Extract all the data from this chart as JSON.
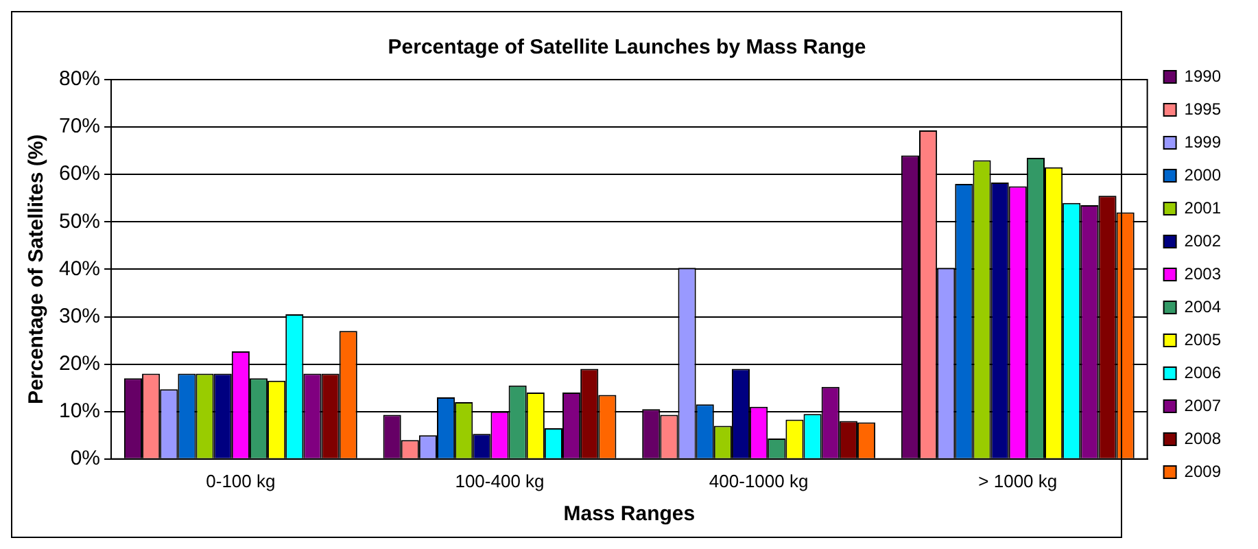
{
  "chart_data": {
    "type": "bar",
    "title": "Percentage of Satellite Launches by Mass Range",
    "xlabel": "Mass Ranges",
    "ylabel": "Percentage of Satellites (%)",
    "categories": [
      "0-100 kg",
      "100-400 kg",
      "400-1000 kg",
      "> 1000 kg"
    ],
    "series": [
      {
        "name": "1990",
        "color": "#660066",
        "values": [
          17,
          9.3,
          10.5,
          64
        ]
      },
      {
        "name": "1995",
        "color": "#ff8080",
        "values": [
          18,
          4,
          9.3,
          69.3
        ]
      },
      {
        "name": "1999",
        "color": "#9999ff",
        "values": [
          14.7,
          5,
          40.3,
          40.3
        ]
      },
      {
        "name": "2000",
        "color": "#0066cc",
        "values": [
          18,
          13,
          11.5,
          58
        ]
      },
      {
        "name": "2001",
        "color": "#99cc00",
        "values": [
          18,
          12,
          7,
          63
        ]
      },
      {
        "name": "2002",
        "color": "#000080",
        "values": [
          18,
          5.3,
          19,
          58.3
        ]
      },
      {
        "name": "2003",
        "color": "#ff00ff",
        "values": [
          22.7,
          10,
          11,
          57.5
        ]
      },
      {
        "name": "2004",
        "color": "#339966",
        "values": [
          17,
          15.5,
          4.3,
          63.5
        ]
      },
      {
        "name": "2005",
        "color": "#ffff00",
        "values": [
          16.5,
          14,
          8.3,
          61.5
        ]
      },
      {
        "name": "2006",
        "color": "#00ffff",
        "values": [
          30.5,
          6.5,
          9.5,
          54
        ]
      },
      {
        "name": "2007",
        "color": "#800080",
        "values": [
          18,
          14,
          15.2,
          53.5
        ]
      },
      {
        "name": "2008",
        "color": "#800000",
        "values": [
          18,
          19,
          8,
          55.5
        ]
      },
      {
        "name": "2009",
        "color": "#ff6600",
        "values": [
          27,
          13.5,
          7.7,
          52
        ]
      }
    ],
    "ylim": [
      0,
      80
    ],
    "yticks": [
      {
        "value": 0,
        "label": "0%"
      },
      {
        "value": 10,
        "label": "10%"
      },
      {
        "value": 20,
        "label": "20%"
      },
      {
        "value": 30,
        "label": "30%"
      },
      {
        "value": 40,
        "label": "40%"
      },
      {
        "value": 50,
        "label": "50%"
      },
      {
        "value": 60,
        "label": "60%"
      },
      {
        "value": 70,
        "label": "70%"
      },
      {
        "value": 80,
        "label": "80%"
      }
    ],
    "grid": "y",
    "legend": "right"
  }
}
